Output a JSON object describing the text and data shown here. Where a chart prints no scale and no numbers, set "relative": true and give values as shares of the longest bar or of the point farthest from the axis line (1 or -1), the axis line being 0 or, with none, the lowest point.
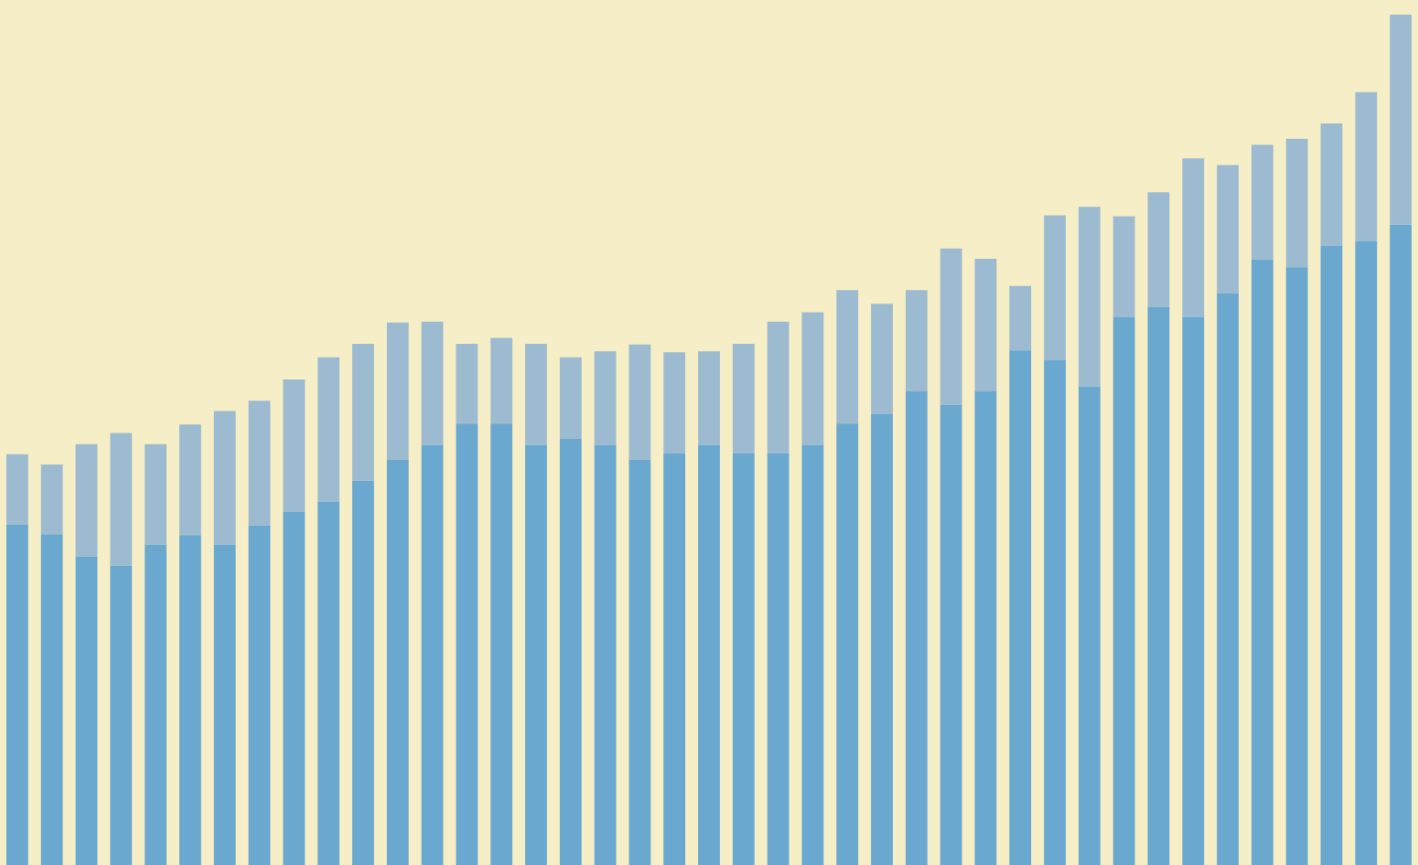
{
  "chart_data": {
    "type": "bar",
    "relative": true,
    "stacked": true,
    "legend": false,
    "categories": [
      null,
      null,
      null,
      null,
      null,
      null,
      null,
      null,
      null,
      null,
      null,
      null,
      null,
      null,
      null,
      null,
      null,
      null,
      null,
      null,
      null,
      null,
      null,
      null,
      null,
      null,
      null,
      null,
      null,
      null,
      null,
      null,
      null,
      null,
      null,
      null,
      null,
      null,
      null,
      null,
      null
    ],
    "series": [
      {
        "color": "#6aa8d0",
        "values": [
          0.4,
          0.389,
          0.363,
          0.352,
          0.377,
          0.388,
          0.377,
          0.399,
          0.415,
          0.427,
          0.452,
          0.477,
          0.494,
          0.519,
          0.519,
          0.494,
          0.501,
          0.494,
          0.477,
          0.484,
          0.494,
          0.484,
          0.484,
          0.494,
          0.519,
          0.53,
          0.557,
          0.541,
          0.557,
          0.605,
          0.594,
          0.563,
          0.644,
          0.656,
          0.644,
          0.672,
          0.712,
          0.703,
          0.728,
          0.734,
          0.753
        ]
      },
      {
        "color": "#9dbbd0",
        "values": [
          0.083,
          0.082,
          0.132,
          0.156,
          0.118,
          0.13,
          0.157,
          0.147,
          0.156,
          0.17,
          0.161,
          0.161,
          0.145,
          0.094,
          0.101,
          0.119,
          0.096,
          0.11,
          0.135,
          0.119,
          0.11,
          0.129,
          0.155,
          0.156,
          0.157,
          0.13,
          0.119,
          0.184,
          0.156,
          0.076,
          0.17,
          0.211,
          0.119,
          0.135,
          0.187,
          0.151,
          0.135,
          0.151,
          0.144,
          0.175,
          0.247
        ]
      }
    ]
  }
}
